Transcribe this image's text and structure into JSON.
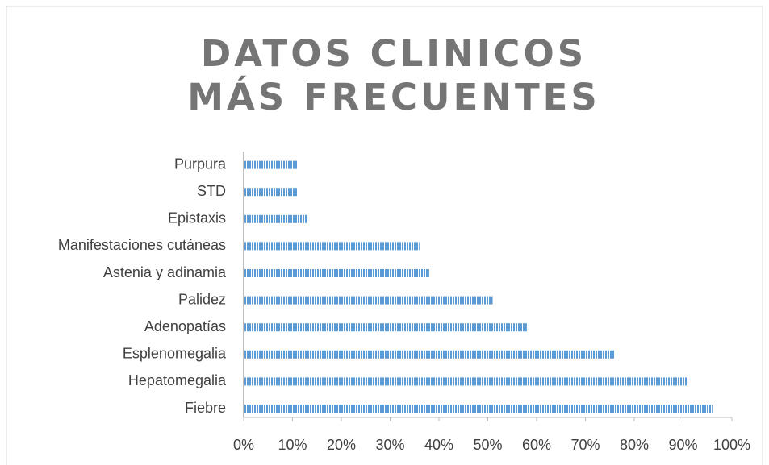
{
  "chart_data": {
    "type": "hbar",
    "title": "DATOS CLINICOS MÁS FRECUENTES",
    "categories": [
      "Fiebre",
      "Hepatomegalia",
      "Esplenomegalia",
      "Adenopatías",
      "Palidez",
      "Astenia y adinamia",
      "Manifestaciones cutáneas",
      "Epistaxis",
      "STD",
      "Purpura"
    ],
    "values": [
      96,
      91,
      76,
      58,
      51,
      38,
      36,
      13,
      11,
      11
    ],
    "color": "#5b9bd5",
    "xlim": [
      0,
      100
    ],
    "xticks": [
      {
        "value": 0,
        "label": "0%"
      },
      {
        "value": 10,
        "label": "10%"
      },
      {
        "value": 20,
        "label": "20%"
      },
      {
        "value": 30,
        "label": "30%"
      },
      {
        "value": 40,
        "label": "40%"
      },
      {
        "value": 50,
        "label": "50%"
      },
      {
        "value": 60,
        "label": "60%"
      },
      {
        "value": 70,
        "label": "70%"
      },
      {
        "value": 80,
        "label": "80%"
      },
      {
        "value": 90,
        "label": "90%"
      },
      {
        "value": 100,
        "label": "100%"
      }
    ],
    "grid": false
  }
}
